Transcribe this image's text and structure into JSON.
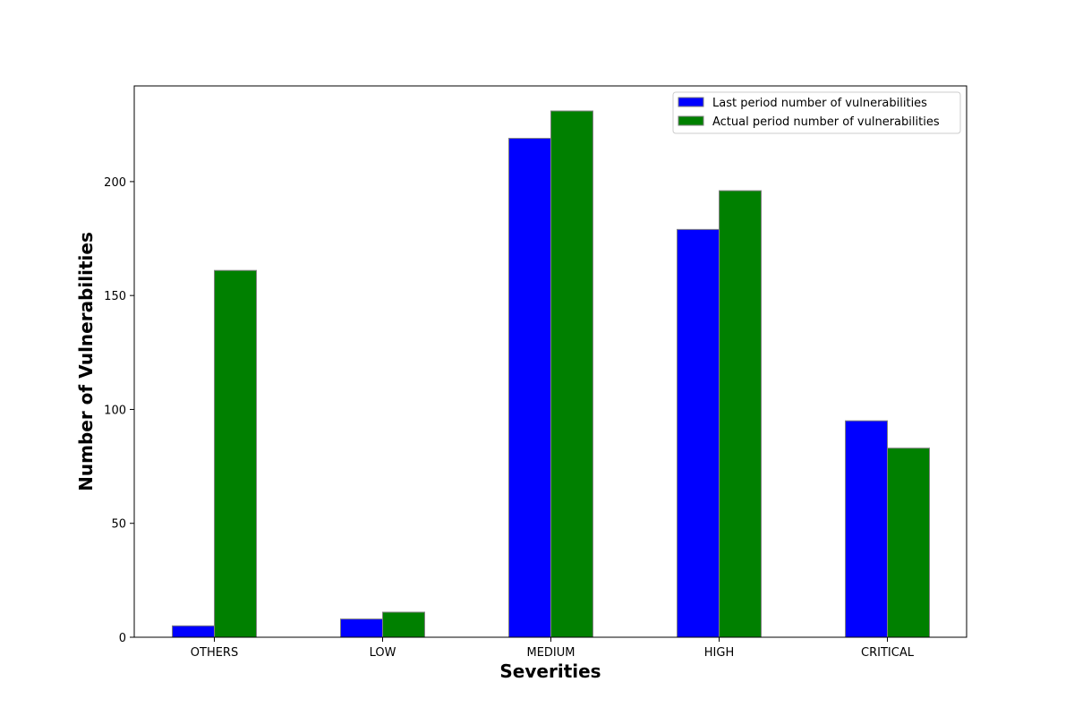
{
  "chart_data": {
    "type": "bar",
    "title": "",
    "xlabel": "Severities",
    "ylabel": "Number of Vulnerabilities",
    "categories": [
      "OTHERS",
      "LOW",
      "MEDIUM",
      "HIGH",
      "CRITICAL"
    ],
    "series": [
      {
        "name": "Last period number of vulnerabilities",
        "color": "#0000ff",
        "values": [
          5,
          8,
          219,
          179,
          95
        ]
      },
      {
        "name": "Actual period number of vulnerabilities",
        "color": "#008000",
        "values": [
          161,
          11,
          231,
          196,
          83
        ]
      }
    ],
    "ylim": [
      0,
      242
    ],
    "yticks": [
      0,
      50,
      100,
      150,
      200
    ],
    "grid": false,
    "legend_position": "top-right",
    "bar_edge_color": "#808080"
  }
}
